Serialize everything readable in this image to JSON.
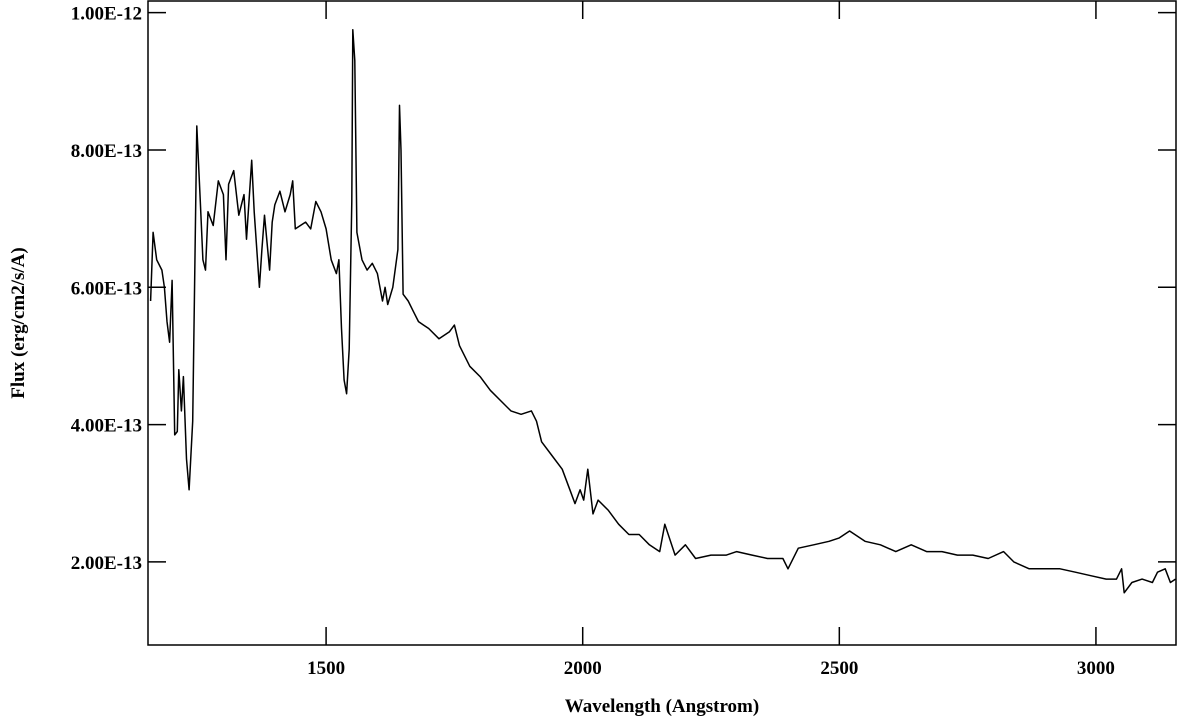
{
  "chart_data": {
    "type": "line",
    "x_label": "Wavelength (Angstrom)",
    "y_label": "Flux (erg/cm2/s/A)",
    "xlim": [
      1153,
      3156
    ],
    "ylim": [
      7.9e-14,
      1.017e-12
    ],
    "xticks": [
      1500,
      2000,
      2500,
      3000
    ],
    "yticks": [
      {
        "value": 2e-13,
        "label": "2.00E-13"
      },
      {
        "value": 4e-13,
        "label": "4.00E-13"
      },
      {
        "value": 6e-13,
        "label": "6.00E-13"
      },
      {
        "value": 8e-13,
        "label": "8.00E-13"
      },
      {
        "value": 1e-12,
        "label": "1.00E-12"
      }
    ],
    "grid": false,
    "x": [
      1158,
      1163,
      1170,
      1180,
      1185,
      1190,
      1195,
      1200,
      1205,
      1210,
      1213,
      1218,
      1222,
      1228,
      1233,
      1240,
      1248,
      1255,
      1260,
      1265,
      1270,
      1280,
      1290,
      1300,
      1305,
      1310,
      1320,
      1330,
      1340,
      1345,
      1355,
      1360,
      1370,
      1375,
      1380,
      1390,
      1395,
      1400,
      1410,
      1420,
      1430,
      1435,
      1440,
      1450,
      1460,
      1470,
      1480,
      1490,
      1500,
      1510,
      1520,
      1525,
      1530,
      1535,
      1540,
      1545,
      1550,
      1552,
      1556,
      1560,
      1570,
      1580,
      1590,
      1600,
      1610,
      1615,
      1620,
      1630,
      1640,
      1643,
      1646,
      1650,
      1660,
      1670,
      1680,
      1690,
      1700,
      1720,
      1740,
      1750,
      1760,
      1780,
      1800,
      1820,
      1840,
      1860,
      1880,
      1900,
      1910,
      1920,
      1940,
      1960,
      1975,
      1985,
      1995,
      2002,
      2010,
      2020,
      2030,
      2050,
      2070,
      2090,
      2110,
      2130,
      2150,
      2160,
      2180,
      2200,
      2220,
      2250,
      2280,
      2300,
      2330,
      2360,
      2390,
      2400,
      2420,
      2450,
      2480,
      2500,
      2520,
      2550,
      2580,
      2610,
      2640,
      2670,
      2700,
      2730,
      2760,
      2790,
      2820,
      2840,
      2870,
      2900,
      2930,
      2960,
      2990,
      3020,
      3040,
      3050,
      3055,
      3070,
      3090,
      3110,
      3120,
      3135,
      3145,
      3155
    ],
    "series": [
      {
        "color": "#000000",
        "values": [
          5.8e-13,
          6.8e-13,
          6.4e-13,
          6.25e-13,
          6e-13,
          5.5e-13,
          5.2e-13,
          6.1e-13,
          3.85e-13,
          3.9e-13,
          4.8e-13,
          4.2e-13,
          4.7e-13,
          3.5e-13,
          3.05e-13,
          4.05e-13,
          8.35e-13,
          7.25e-13,
          6.4e-13,
          6.25e-13,
          7.1e-13,
          6.9e-13,
          7.55e-13,
          7.35e-13,
          6.4e-13,
          7.5e-13,
          7.7e-13,
          7.05e-13,
          7.35e-13,
          6.7e-13,
          7.85e-13,
          7.1e-13,
          6e-13,
          6.55e-13,
          7.05e-13,
          6.25e-13,
          6.95e-13,
          7.2e-13,
          7.4e-13,
          7.1e-13,
          7.35e-13,
          7.55e-13,
          6.85e-13,
          6.9e-13,
          6.95e-13,
          6.85e-13,
          7.25e-13,
          7.1e-13,
          6.85e-13,
          6.4e-13,
          6.2e-13,
          6.4e-13,
          5.4e-13,
          4.65e-13,
          4.45e-13,
          5.1e-13,
          7.25e-13,
          9.75e-13,
          9.3e-13,
          6.8e-13,
          6.4e-13,
          6.25e-13,
          6.35e-13,
          6.2e-13,
          5.8e-13,
          6e-13,
          5.75e-13,
          6e-13,
          6.55e-13,
          8.65e-13,
          8e-13,
          5.9e-13,
          5.8e-13,
          5.65e-13,
          5.5e-13,
          5.45e-13,
          5.4e-13,
          5.25e-13,
          5.35e-13,
          5.45e-13,
          5.15e-13,
          4.85e-13,
          4.7e-13,
          4.5e-13,
          4.35e-13,
          4.2e-13,
          4.15e-13,
          4.2e-13,
          4.05e-13,
          3.75e-13,
          3.55e-13,
          3.35e-13,
          3.05e-13,
          2.85e-13,
          3.05e-13,
          2.9e-13,
          3.35e-13,
          2.7e-13,
          2.9e-13,
          2.75e-13,
          2.55e-13,
          2.4e-13,
          2.4e-13,
          2.25e-13,
          2.15e-13,
          2.55e-13,
          2.1e-13,
          2.25e-13,
          2.05e-13,
          2.1e-13,
          2.1e-13,
          2.15e-13,
          2.1e-13,
          2.05e-13,
          2.05e-13,
          1.9e-13,
          2.2e-13,
          2.25e-13,
          2.3e-13,
          2.35e-13,
          2.45e-13,
          2.3e-13,
          2.25e-13,
          2.15e-13,
          2.25e-13,
          2.15e-13,
          2.15e-13,
          2.1e-13,
          2.1e-13,
          2.05e-13,
          2.15e-13,
          2e-13,
          1.9e-13,
          1.9e-13,
          1.9e-13,
          1.85e-13,
          1.8e-13,
          1.75e-13,
          1.75e-13,
          1.9e-13,
          1.55e-13,
          1.7e-13,
          1.75e-13,
          1.7e-13,
          1.85e-13,
          1.9e-13,
          1.7e-13,
          1.75e-13
        ]
      }
    ]
  }
}
